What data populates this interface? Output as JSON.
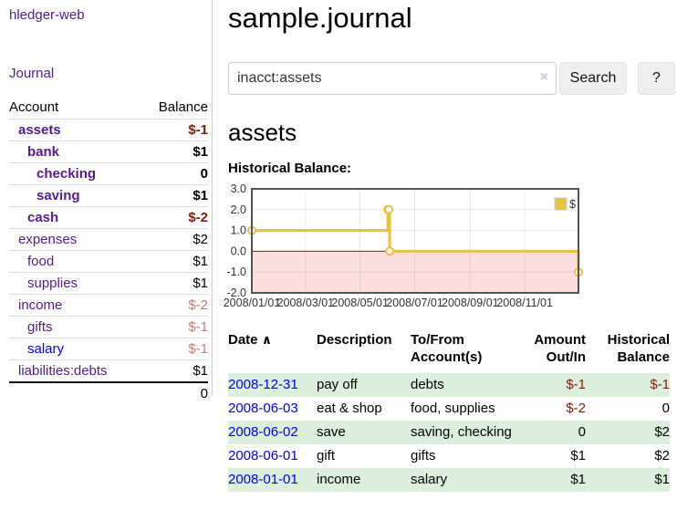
{
  "app": {
    "brand": "hledger-web",
    "nav": {
      "journal": "Journal"
    }
  },
  "sidebar": {
    "headers": {
      "account": "Account",
      "balance": "Balance"
    },
    "accounts": [
      {
        "name": "assets",
        "indent": 1,
        "bold": true,
        "color": "purple",
        "balance": "$-1",
        "balance_class": "neg-strong"
      },
      {
        "name": "bank",
        "indent": 2,
        "bold": true,
        "color": "purple",
        "balance": "$1",
        "balance_class": ""
      },
      {
        "name": "checking",
        "indent": 3,
        "bold": true,
        "color": "purple",
        "balance": "0",
        "balance_class": ""
      },
      {
        "name": "saving",
        "indent": 3,
        "bold": true,
        "color": "purple",
        "balance": "$1",
        "balance_class": ""
      },
      {
        "name": "cash",
        "indent": 2,
        "bold": true,
        "color": "purple",
        "balance": "$-2",
        "balance_class": "neg-strong"
      },
      {
        "name": "expenses",
        "indent": 1,
        "bold": false,
        "color": "purple",
        "balance": "$2",
        "balance_class": ""
      },
      {
        "name": "food",
        "indent": 2,
        "bold": false,
        "color": "purple",
        "balance": "$1",
        "balance_class": ""
      },
      {
        "name": "supplies",
        "indent": 2,
        "bold": false,
        "color": "purple",
        "balance": "$1",
        "balance_class": ""
      },
      {
        "name": "income",
        "indent": 1,
        "bold": false,
        "color": "purple",
        "balance": "$-2",
        "balance_class": "neg-soft"
      },
      {
        "name": "gifts",
        "indent": 2,
        "bold": false,
        "color": "purple",
        "balance": "$-1",
        "balance_class": "neg-soft"
      },
      {
        "name": "salary",
        "indent": 2,
        "bold": false,
        "color": "blue",
        "balance": "$-1",
        "balance_class": "neg-soft"
      },
      {
        "name": "liabilities:debts",
        "indent": 1,
        "bold": false,
        "color": "purple",
        "balance": "$1",
        "balance_class": ""
      }
    ],
    "total": "0"
  },
  "main": {
    "title": "sample.journal",
    "search": {
      "value": "inacct:assets",
      "clear_icon": "×",
      "search_button": "Search",
      "help_button": "?"
    },
    "account_heading": "assets",
    "chart_heading": "Historical Balance:"
  },
  "chart_data": {
    "type": "line",
    "step": true,
    "title": "Historical Balance",
    "ylim": [
      -2,
      3
    ],
    "yticks": [
      3.0,
      2.0,
      1.0,
      0.0,
      -1.0,
      -2.0
    ],
    "xticks": [
      "2008/01/01",
      "2008/03/01",
      "2008/05/01",
      "2008/07/01",
      "2008/09/01",
      "2008/11/01"
    ],
    "xtick_days": [
      0,
      60,
      121,
      182,
      244,
      305
    ],
    "x_range_days": [
      0,
      365
    ],
    "series": [
      {
        "name": "$",
        "color": "#e7c13f",
        "points": [
          {
            "date": "2008-01-01",
            "day": 0,
            "y": 1
          },
          {
            "date": "2008-06-01",
            "day": 152,
            "y": 2
          },
          {
            "date": "2008-06-02",
            "day": 153,
            "y": 2
          },
          {
            "date": "2008-06-03",
            "day": 154,
            "y": 0
          },
          {
            "date": "2008-12-31",
            "day": 365,
            "y": -1
          }
        ]
      }
    ],
    "legend": {
      "label": "$",
      "position": "top-right"
    },
    "zero_line_color": "#8f1a1a",
    "negative_region_color": "#fcdede",
    "grid": true
  },
  "register": {
    "headers": {
      "date": "Date",
      "sort_icon": "∧",
      "description": "Description",
      "accounts": "To/From Account(s)",
      "amount": "Amount Out/In",
      "balance": "Historical Balance"
    },
    "rows": [
      {
        "date": "2008-12-31",
        "description": "pay off",
        "accounts": "debts",
        "amount": "$-1",
        "amount_class": "neg-strong",
        "balance": "$-1",
        "balance_class": "neg-strong",
        "shaded": true
      },
      {
        "date": "2008-06-03",
        "description": "eat & shop",
        "accounts": "food, supplies",
        "amount": "$-2",
        "amount_class": "neg-strong",
        "balance": "0",
        "balance_class": "",
        "shaded": false
      },
      {
        "date": "2008-06-02",
        "description": "save",
        "accounts": "saving, checking",
        "amount": "0",
        "amount_class": "",
        "balance": "$2",
        "balance_class": "",
        "shaded": true
      },
      {
        "date": "2008-06-01",
        "description": "gift",
        "accounts": "gifts",
        "amount": "$1",
        "amount_class": "",
        "balance": "$2",
        "balance_class": "",
        "shaded": false
      },
      {
        "date": "2008-01-01",
        "description": "income",
        "accounts": "salary",
        "amount": "$1",
        "amount_class": "",
        "balance": "$1",
        "balance_class": "",
        "shaded": true
      }
    ]
  }
}
